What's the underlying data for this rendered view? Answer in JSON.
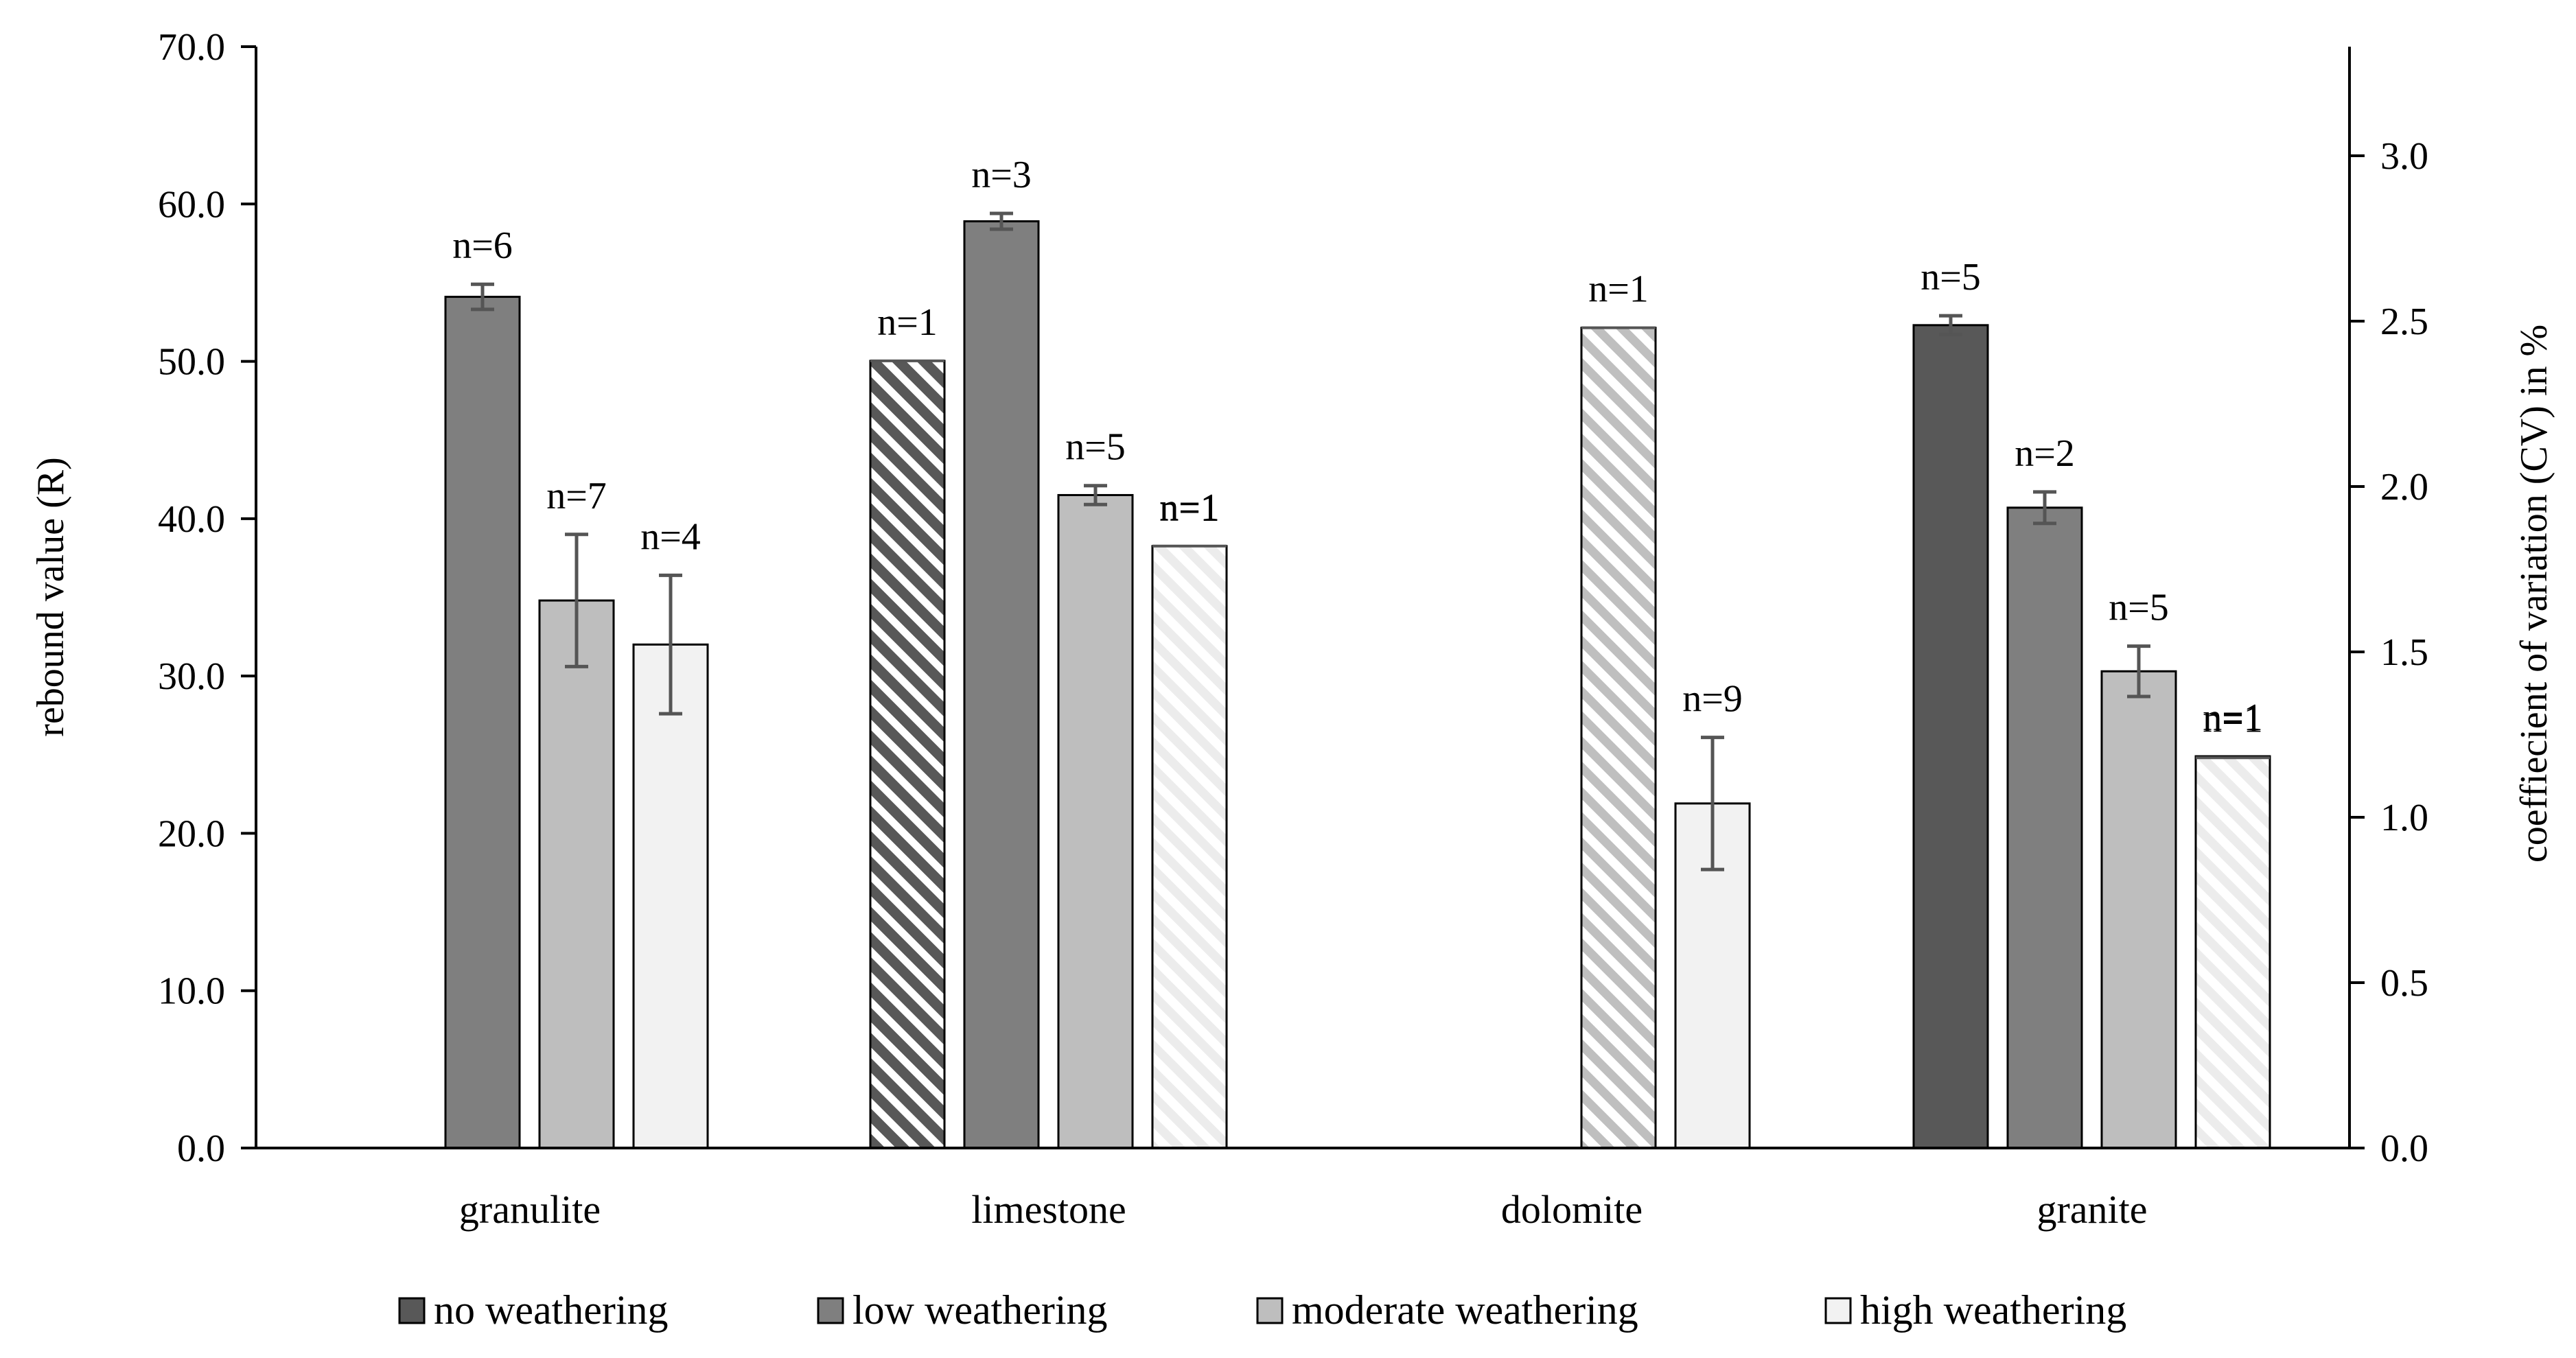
{
  "chart_data": {
    "type": "bar",
    "categories": [
      "granulite",
      "limestone",
      "dolomite",
      "granite"
    ],
    "series": [
      {
        "name": "no weathering",
        "values": [
          null,
          null,
          null,
          52.3
        ],
        "errors": [
          null,
          null,
          null,
          0.6
        ],
        "n": [
          null,
          null,
          null,
          "n=5"
        ],
        "color": "#585858"
      },
      {
        "name": "low weathering",
        "values": [
          54.1,
          58.9,
          null,
          40.7
        ],
        "errors": [
          0.8,
          0.5,
          null,
          1.0
        ],
        "n": [
          "n=6",
          "n=3",
          null,
          "n=2"
        ],
        "color": "#7f7f7f"
      },
      {
        "name": "moderate weathering",
        "values": [
          34.8,
          41.5,
          null,
          30.3
        ],
        "errors": [
          4.2,
          0.6,
          null,
          1.6
        ],
        "n": [
          "n=7",
          "n=5",
          null,
          "n=5"
        ],
        "color": "#bebebe"
      },
      {
        "name": "high weathering",
        "values": [
          32.0,
          38.2,
          21.9,
          24.9
        ],
        "errors": [
          4.4,
          0,
          4.2,
          0
        ],
        "n": [
          "n=4",
          "n=1",
          "n=9",
          "n=1"
        ],
        "color": "#f2f2f2"
      }
    ],
    "cv_series": {
      "axis": "right",
      "items": [
        {
          "category": "limestone",
          "slot": 0,
          "value": 2.38,
          "n": "n=1",
          "style": "hatched-dark"
        },
        {
          "category": "limestone",
          "slot": 3,
          "value": 1.82,
          "n": "n=1",
          "style": "hatched-light"
        },
        {
          "category": "dolomite",
          "slot": 2,
          "value": 2.48,
          "n": "n=1",
          "style": "hatched-mid"
        },
        {
          "category": "granite",
          "slot": 3,
          "value": 1.18,
          "n": "n=1",
          "style": "hatched-light"
        }
      ]
    },
    "ylabel": "rebound value (R)",
    "y2label": "coeffiecient of variation (CV) in %",
    "ylim": [
      0,
      70
    ],
    "y2lim": [
      0,
      3.33
    ],
    "yticks": [
      "0.0",
      "10.0",
      "20.0",
      "30.0",
      "40.0",
      "50.0",
      "60.0",
      "70.0"
    ],
    "y2ticks": [
      "0.0",
      "0.5",
      "1.0",
      "1.5",
      "2.0",
      "2.5",
      "3.0"
    ],
    "legend": [
      "no weathering",
      "low weathering",
      "moderate weathering",
      "high weathering"
    ],
    "legend_position": "bottom"
  }
}
